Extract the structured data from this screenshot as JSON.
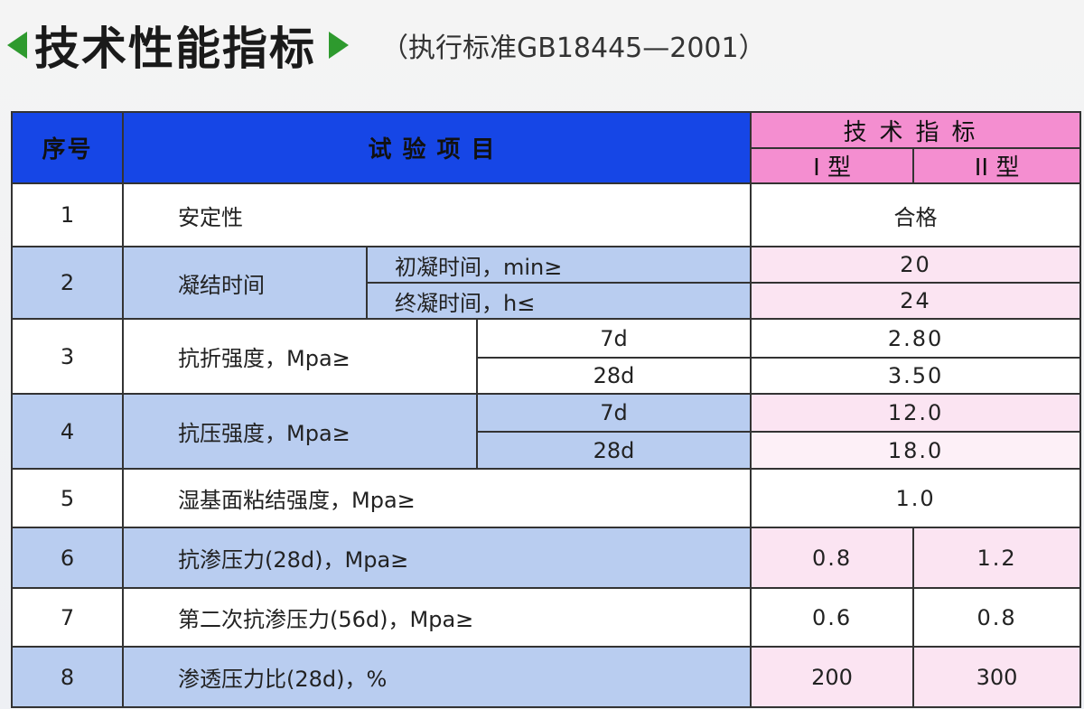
{
  "title": {
    "main": "技术性能指标",
    "standard": "（执行标准GB18445—2001）",
    "accent_color": "#2e9a2e"
  },
  "header": {
    "seq": "序号",
    "item": "试验项目",
    "spec": "技术指标",
    "type1": "I 型",
    "type2": "II 型"
  },
  "colors": {
    "header_blue": "#1646e6",
    "header_pink": "#f48ed0",
    "row_blue": "#b9cdf0",
    "row_pink": "#fbe4f2"
  },
  "rows": [
    {
      "seq": "1",
      "item": "安定性",
      "value": "合格"
    },
    {
      "seq": "2",
      "item": "凝结时间",
      "sub": [
        {
          "label": "初凝时间，min≥",
          "value": "20"
        },
        {
          "label": "终凝时间，h≤",
          "value": "24"
        }
      ]
    },
    {
      "seq": "3",
      "item": "抗折强度，Mpa≥",
      "sub": [
        {
          "label": "7d",
          "value": "2.80"
        },
        {
          "label": "28d",
          "value": "3.50"
        }
      ]
    },
    {
      "seq": "4",
      "item": "抗压强度，Mpa≥",
      "sub": [
        {
          "label": "7d",
          "value": "12.0"
        },
        {
          "label": "28d",
          "value": "18.0"
        }
      ]
    },
    {
      "seq": "5",
      "item": "湿基面粘结强度，Mpa≥",
      "value": "1.0"
    },
    {
      "seq": "6",
      "item": "抗渗压力(28d)，Mpa≥",
      "type1": "0.8",
      "type2": "1.2"
    },
    {
      "seq": "7",
      "item": "第二次抗渗压力(56d)，Mpa≥",
      "type1": "0.6",
      "type2": "0.8"
    },
    {
      "seq": "8",
      "item": "渗透压力比(28d)，%",
      "type1": "200",
      "type2": "300"
    }
  ]
}
